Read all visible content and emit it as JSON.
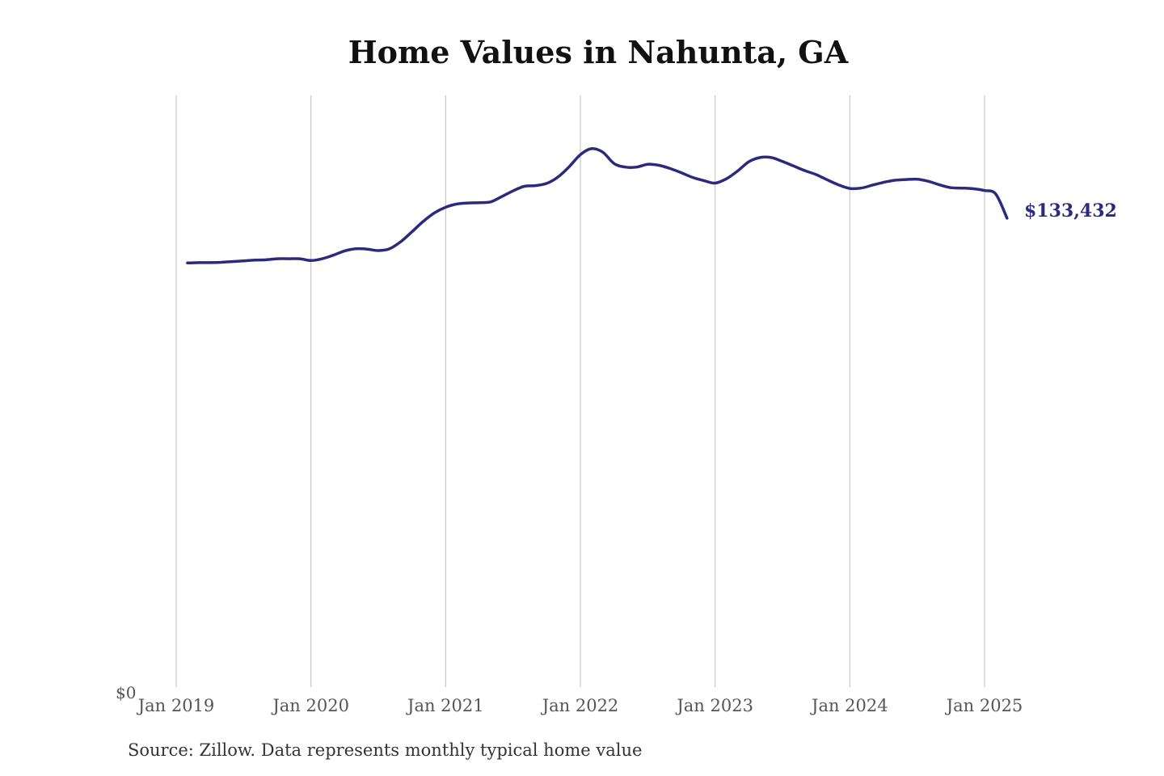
{
  "chart_data": {
    "type": "line",
    "title": "Home Values in Nahunta, GA",
    "xlabel": "",
    "ylabel": "",
    "y_min_label": "$0",
    "ylim": [
      0,
      168000
    ],
    "grid": "vertical",
    "x_ticks": [
      "Jan 2019",
      "Jan 2020",
      "Jan 2021",
      "Jan 2022",
      "Jan 2023",
      "Jan 2024",
      "Jan 2025"
    ],
    "end_label": "$133,432",
    "series": [
      {
        "color": "#2b2a7c",
        "x": [
          "2019-02",
          "2019-03",
          "2019-04",
          "2019-05",
          "2019-06",
          "2019-07",
          "2019-08",
          "2019-09",
          "2019-10",
          "2019-11",
          "2019-12",
          "2020-01",
          "2020-02",
          "2020-03",
          "2020-04",
          "2020-05",
          "2020-06",
          "2020-07",
          "2020-08",
          "2020-09",
          "2020-10",
          "2020-11",
          "2020-12",
          "2021-01",
          "2021-02",
          "2021-03",
          "2021-04",
          "2021-05",
          "2021-06",
          "2021-07",
          "2021-08",
          "2021-09",
          "2021-10",
          "2021-11",
          "2021-12",
          "2022-01",
          "2022-02",
          "2022-03",
          "2022-04",
          "2022-05",
          "2022-06",
          "2022-07",
          "2022-08",
          "2022-09",
          "2022-10",
          "2022-11",
          "2022-12",
          "2023-01",
          "2023-02",
          "2023-03",
          "2023-04",
          "2023-05",
          "2023-06",
          "2023-07",
          "2023-08",
          "2023-09",
          "2023-10",
          "2023-11",
          "2023-12",
          "2024-01",
          "2024-02",
          "2024-03",
          "2024-04",
          "2024-05",
          "2024-06",
          "2024-07",
          "2024-08",
          "2024-09",
          "2024-10",
          "2024-11",
          "2024-12",
          "2025-01",
          "2025-02",
          "2025-03"
        ],
        "y": [
          120800,
          120900,
          120900,
          121000,
          121200,
          121400,
          121600,
          121700,
          122000,
          122000,
          122000,
          121500,
          122000,
          123000,
          124200,
          124800,
          124700,
          124300,
          124800,
          126800,
          129600,
          132500,
          134900,
          136500,
          137400,
          137700,
          137800,
          138000,
          139500,
          141100,
          142400,
          142600,
          143200,
          145000,
          147900,
          151300,
          153000,
          152000,
          148800,
          147800,
          147800,
          148600,
          148300,
          147400,
          146200,
          144900,
          144000,
          143300,
          144500,
          146700,
          149300,
          150500,
          150500,
          149400,
          148100,
          146800,
          145700,
          144200,
          142800,
          141800,
          141900,
          142700,
          143500,
          144100,
          144300,
          144400,
          143800,
          142800,
          142000,
          141900,
          141700,
          141200,
          140200,
          133432
        ]
      }
    ]
  },
  "source_note": "Source: Zillow. Data represents monthly typical home value"
}
